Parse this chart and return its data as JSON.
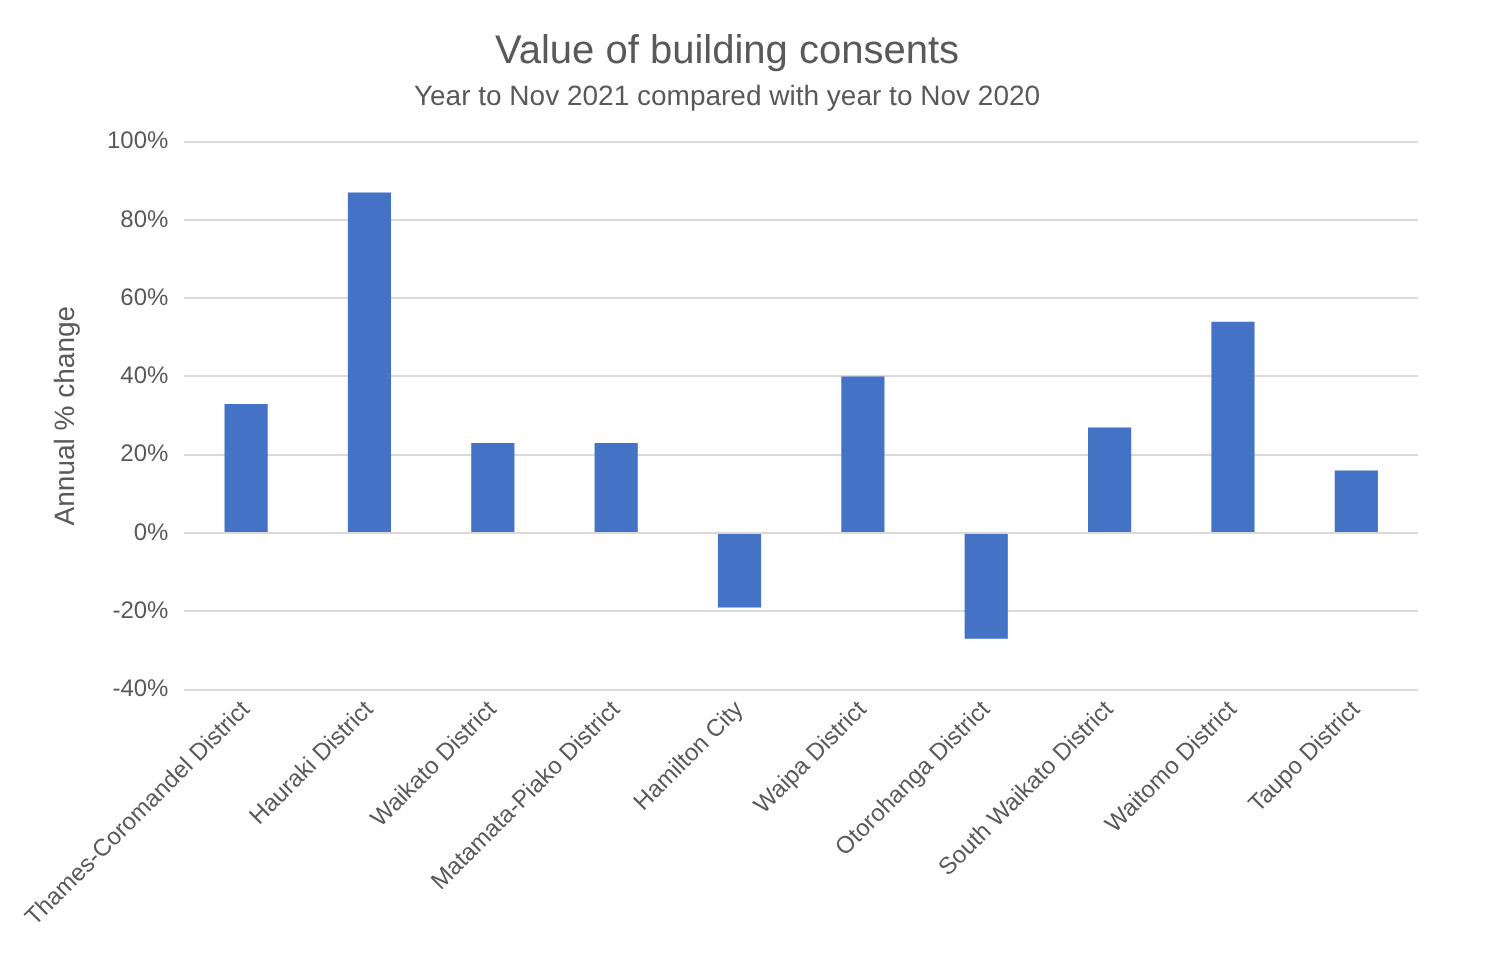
{
  "chart_data": {
    "type": "bar",
    "title": "Value of building consents",
    "subtitle": "Year to Nov 2021 compared with year to Nov 2020",
    "ylabel": "Annual % change",
    "categories": [
      "Thames-Coromandel District",
      "Hauraki District",
      "Waikato District",
      "Matamata-Piako District",
      "Hamilton City",
      "Waipa District",
      "Otorohanga District",
      "South Waikato District",
      "Waitomo District",
      "Taupo District"
    ],
    "values": [
      33,
      87,
      23,
      23,
      -19,
      40,
      -27,
      27,
      54,
      16
    ],
    "color": "#4472c4",
    "ylim": [
      -40,
      100
    ],
    "yticks": [
      {
        "value": -40,
        "label": "-40%"
      },
      {
        "value": -20,
        "label": "-20%"
      },
      {
        "value": 0,
        "label": "0%"
      },
      {
        "value": 20,
        "label": "20%"
      },
      {
        "value": 40,
        "label": "40%"
      },
      {
        "value": 60,
        "label": "60%"
      },
      {
        "value": 80,
        "label": "80%"
      },
      {
        "value": 100,
        "label": "100%"
      }
    ],
    "grid": "y",
    "legend": false
  }
}
